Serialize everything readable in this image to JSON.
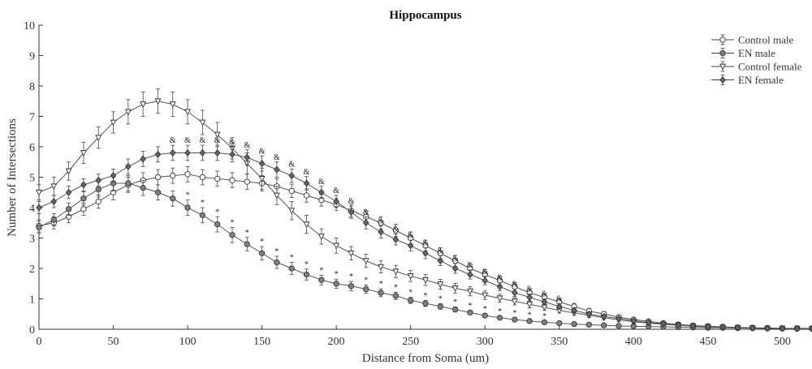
{
  "chart_data": {
    "type": "line",
    "title": "Hippocampus",
    "xlabel": "Distance from Soma (um)",
    "ylabel": "Number of Intersections",
    "xlim": [
      0,
      520
    ],
    "ylim": [
      0,
      10
    ],
    "xticks": [
      0,
      50,
      100,
      150,
      200,
      250,
      300,
      350,
      400,
      450,
      500
    ],
    "yticks": [
      0,
      1,
      2,
      3,
      4,
      5,
      6,
      7,
      8,
      9,
      10
    ],
    "grid": false,
    "legend_position": "top-right",
    "x": [
      0,
      10,
      20,
      30,
      40,
      50,
      60,
      70,
      80,
      90,
      100,
      110,
      120,
      130,
      140,
      150,
      160,
      170,
      180,
      190,
      200,
      210,
      220,
      230,
      240,
      250,
      260,
      270,
      280,
      290,
      300,
      310,
      320,
      330,
      340,
      350,
      360,
      370,
      380,
      390,
      400,
      410,
      420,
      430,
      440,
      450,
      460,
      470,
      480,
      490,
      500,
      510,
      520
    ],
    "series": [
      {
        "name": "Control male",
        "marker": "open-circle",
        "fill": "#ffffff",
        "values": [
          3.4,
          3.5,
          3.7,
          3.95,
          4.2,
          4.5,
          4.75,
          4.9,
          5.0,
          5.05,
          5.1,
          5.0,
          4.95,
          4.9,
          4.85,
          4.8,
          4.7,
          4.55,
          4.4,
          4.25,
          4.1,
          3.9,
          3.7,
          3.5,
          3.25,
          3.0,
          2.75,
          2.5,
          2.25,
          2.0,
          1.8,
          1.6,
          1.4,
          1.2,
          1.05,
          0.9,
          0.75,
          0.6,
          0.5,
          0.4,
          0.32,
          0.26,
          0.2,
          0.16,
          0.12,
          0.1,
          0.08,
          0.06,
          0.05,
          0.04,
          0.03,
          0.02,
          0.02
        ],
        "errors": [
          0.2,
          0.2,
          0.2,
          0.2,
          0.22,
          0.25,
          0.25,
          0.25,
          0.25,
          0.25,
          0.25,
          0.25,
          0.25,
          0.25,
          0.25,
          0.25,
          0.25,
          0.22,
          0.22,
          0.2,
          0.2,
          0.2,
          0.2,
          0.2,
          0.2,
          0.2,
          0.18,
          0.18,
          0.18,
          0.16,
          0.16,
          0.15,
          0.14,
          0.13,
          0.12,
          0.11,
          0.1,
          0.09,
          0.08,
          0.07,
          0.06,
          0.05,
          0.05,
          0.04,
          0.04,
          0.03,
          0.03,
          0.02,
          0.02,
          0.02,
          0.02,
          0.02,
          0.02
        ]
      },
      {
        "name": "EN male",
        "marker": "filled-circle",
        "fill": "#808080",
        "values": [
          3.35,
          3.6,
          3.95,
          4.3,
          4.6,
          4.8,
          4.8,
          4.65,
          4.5,
          4.3,
          4.0,
          3.75,
          3.45,
          3.1,
          2.8,
          2.5,
          2.2,
          2.0,
          1.8,
          1.62,
          1.5,
          1.42,
          1.32,
          1.2,
          1.1,
          0.95,
          0.85,
          0.75,
          0.65,
          0.55,
          0.45,
          0.38,
          0.32,
          0.27,
          0.23,
          0.2,
          0.17,
          0.15,
          0.13,
          0.11,
          0.1,
          0.09,
          0.08,
          0.07,
          0.06,
          0.05,
          0.05,
          0.04,
          0.04,
          0.03,
          0.03,
          0.03,
          0.03
        ],
        "errors": [
          0.2,
          0.2,
          0.2,
          0.22,
          0.25,
          0.25,
          0.25,
          0.25,
          0.25,
          0.25,
          0.25,
          0.25,
          0.25,
          0.25,
          0.22,
          0.22,
          0.2,
          0.2,
          0.18,
          0.16,
          0.15,
          0.15,
          0.14,
          0.13,
          0.12,
          0.1,
          0.1,
          0.09,
          0.08,
          0.07,
          0.06,
          0.05,
          0.05,
          0.04,
          0.04,
          0.04,
          0.03,
          0.03,
          0.03,
          0.02,
          0.02,
          0.02,
          0.02,
          0.02,
          0.02,
          0.02,
          0.02,
          0.02,
          0.02,
          0.02,
          0.02,
          0.02,
          0.02
        ]
      },
      {
        "name": "Control female",
        "marker": "open-triangle",
        "fill": "#ffffff",
        "values": [
          4.5,
          4.7,
          5.2,
          5.8,
          6.3,
          6.8,
          7.15,
          7.4,
          7.5,
          7.4,
          7.15,
          6.8,
          6.4,
          5.95,
          5.45,
          4.95,
          4.4,
          3.9,
          3.45,
          3.05,
          2.75,
          2.5,
          2.25,
          2.05,
          1.9,
          1.75,
          1.62,
          1.48,
          1.35,
          1.25,
          1.12,
          1.02,
          0.92,
          0.82,
          0.72,
          0.62,
          0.54,
          0.46,
          0.38,
          0.31,
          0.25,
          0.2,
          0.16,
          0.13,
          0.1,
          0.08,
          0.06,
          0.05,
          0.04,
          0.03,
          0.03,
          0.02,
          0.02
        ],
        "errors": [
          0.25,
          0.3,
          0.3,
          0.35,
          0.35,
          0.35,
          0.4,
          0.4,
          0.4,
          0.4,
          0.4,
          0.4,
          0.4,
          0.35,
          0.35,
          0.35,
          0.3,
          0.3,
          0.3,
          0.25,
          0.25,
          0.22,
          0.22,
          0.2,
          0.2,
          0.18,
          0.18,
          0.16,
          0.16,
          0.15,
          0.14,
          0.13,
          0.12,
          0.11,
          0.1,
          0.09,
          0.08,
          0.07,
          0.06,
          0.05,
          0.05,
          0.04,
          0.04,
          0.03,
          0.03,
          0.03,
          0.02,
          0.02,
          0.02,
          0.02,
          0.02,
          0.02,
          0.02
        ]
      },
      {
        "name": "EN female",
        "marker": "filled-diamond",
        "fill": "#666666",
        "values": [
          4.0,
          4.2,
          4.5,
          4.75,
          4.9,
          5.05,
          5.35,
          5.6,
          5.75,
          5.8,
          5.8,
          5.8,
          5.8,
          5.75,
          5.65,
          5.45,
          5.25,
          5.05,
          4.8,
          4.5,
          4.2,
          3.85,
          3.5,
          3.2,
          2.95,
          2.75,
          2.5,
          2.25,
          2.0,
          1.8,
          1.6,
          1.4,
          1.2,
          1.05,
          0.9,
          0.75,
          0.62,
          0.5,
          0.42,
          0.35,
          0.28,
          0.22,
          0.18,
          0.14,
          0.11,
          0.09,
          0.07,
          0.05,
          0.04,
          0.03,
          0.03,
          0.02,
          0.02
        ],
        "errors": [
          0.2,
          0.2,
          0.2,
          0.2,
          0.2,
          0.22,
          0.25,
          0.25,
          0.25,
          0.25,
          0.25,
          0.25,
          0.25,
          0.25,
          0.25,
          0.25,
          0.25,
          0.22,
          0.22,
          0.2,
          0.2,
          0.2,
          0.2,
          0.2,
          0.18,
          0.18,
          0.18,
          0.16,
          0.16,
          0.15,
          0.14,
          0.13,
          0.12,
          0.11,
          0.1,
          0.09,
          0.08,
          0.07,
          0.06,
          0.05,
          0.05,
          0.04,
          0.04,
          0.03,
          0.03,
          0.03,
          0.02,
          0.02,
          0.02,
          0.02,
          0.02,
          0.02,
          0.02
        ]
      }
    ],
    "annotations": [
      {
        "symbol": "&",
        "series": "EN female",
        "x": [
          90,
          100,
          110,
          120,
          130,
          140,
          150,
          160,
          170,
          180,
          190,
          200,
          210,
          220,
          230,
          240,
          250,
          260,
          270,
          280,
          290,
          300,
          310,
          320,
          330,
          340,
          350
        ]
      },
      {
        "symbol": "*",
        "series": "EN male",
        "x": [
          100,
          110,
          120,
          130,
          140,
          150,
          160,
          170,
          180,
          190,
          200,
          210,
          220,
          230,
          240,
          250,
          260,
          270,
          280,
          290,
          300,
          310,
          320,
          330,
          340
        ]
      }
    ]
  }
}
